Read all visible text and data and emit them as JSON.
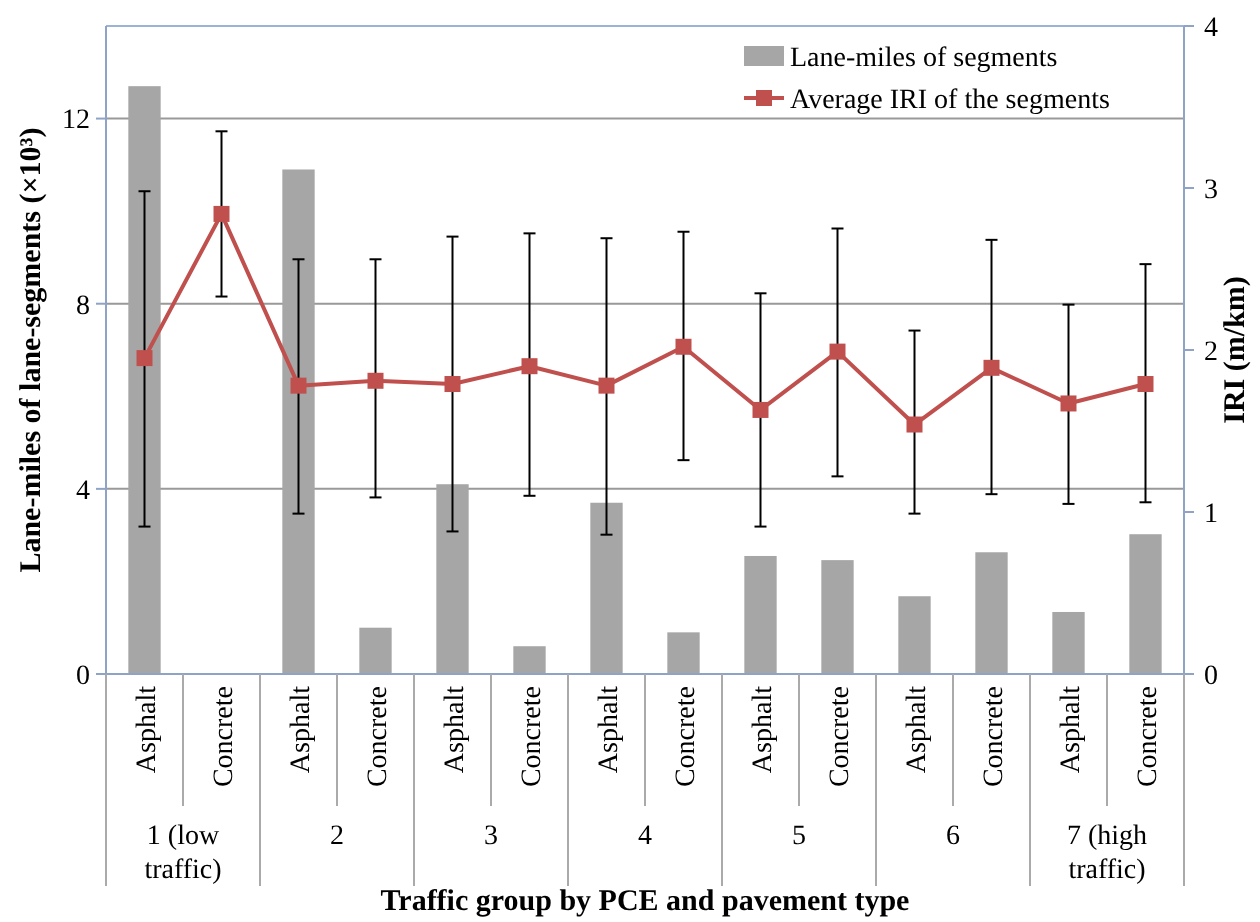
{
  "chart_data": {
    "type": "bar",
    "xlabel": "Traffic group by PCE and pavement type",
    "ylabel": "Lane-miles of lane-segments (×10³)",
    "y2label": "IRI (m/km)",
    "categories": [
      "Asphalt",
      "Concrete",
      "Asphalt",
      "Concrete",
      "Asphalt",
      "Concrete",
      "Asphalt",
      "Concrete",
      "Asphalt",
      "Concrete",
      "Asphalt",
      "Concrete",
      "Asphalt",
      "Concrete"
    ],
    "annotations": [
      "1 (low traffic)",
      "2",
      "3",
      "4",
      "5",
      "6",
      "7 (high traffic)"
    ],
    "series": [
      {
        "name": "Lane-miles of segments",
        "color": "#a6a6a6",
        "values": [
          12.7,
          0,
          10.9,
          1.0,
          4.1,
          0.6,
          3.7,
          0.9,
          2.55,
          2.46,
          1.68,
          2.63,
          1.34,
          3.02
        ]
      },
      {
        "name": "Average IRI of the segments",
        "type": "line",
        "axis": "y2",
        "color": "#c0504d",
        "values": [
          1.95,
          2.84,
          1.78,
          1.81,
          1.79,
          1.9,
          1.78,
          2.02,
          1.63,
          1.99,
          1.54,
          1.89,
          1.67,
          1.79
        ],
        "errors": [
          [
            0.91,
            2.98
          ],
          [
            2.33,
            3.35
          ],
          [
            0.99,
            2.56
          ],
          [
            1.09,
            2.56
          ],
          [
            0.88,
            2.7
          ],
          [
            1.1,
            2.72
          ],
          [
            0.86,
            2.69
          ],
          [
            1.32,
            2.73
          ],
          [
            0.91,
            2.35
          ],
          [
            1.22,
            2.75
          ],
          [
            0.99,
            2.12
          ],
          [
            1.11,
            2.68
          ],
          [
            1.05,
            2.28
          ],
          [
            1.06,
            2.53
          ]
        ]
      }
    ],
    "ylim": [
      0,
      14
    ],
    "yticks": [
      0,
      4,
      8,
      12
    ],
    "y2lim": [
      0,
      4
    ],
    "y2ticks": [
      0,
      1,
      2,
      3,
      4
    ],
    "grid": "y",
    "legend": "top right",
    "marker": "square",
    "line_style": "solid"
  }
}
